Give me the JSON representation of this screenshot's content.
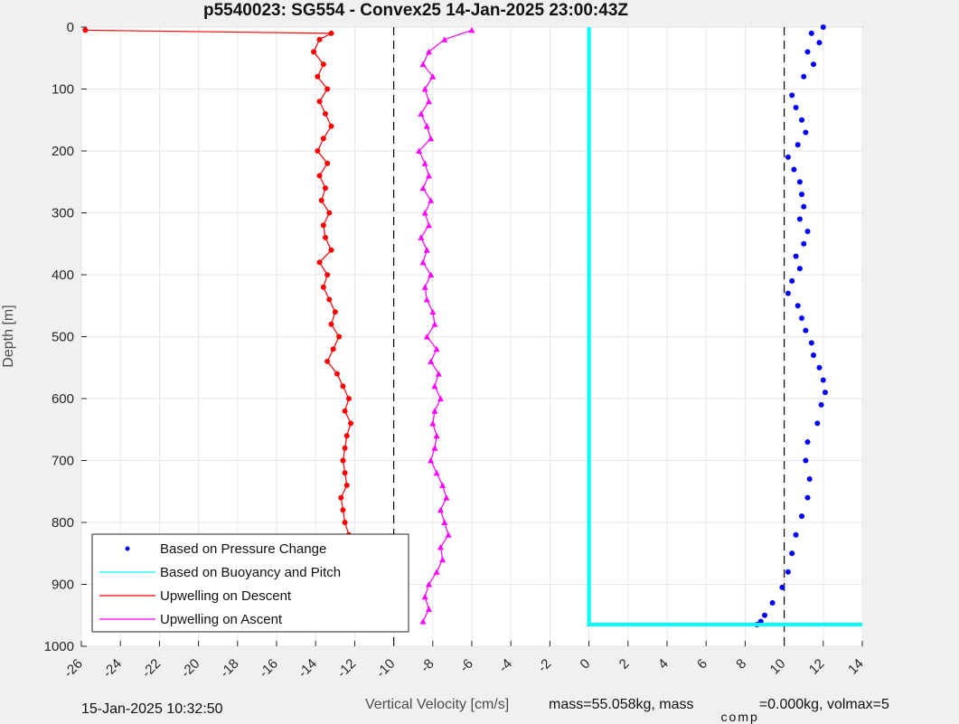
{
  "chart_data": {
    "type": "scatter",
    "title": "p5540023: SG554 - Convex25 14-Jan-2025 23:00:43Z",
    "xlabel": "Vertical Velocity [cm/s]",
    "ylabel": "Depth [m]",
    "xlim": [
      -26,
      14
    ],
    "ylim": [
      0,
      1000
    ],
    "y_reversed": true,
    "grid": true,
    "legend_position": "bottom-left",
    "x_ticks": [
      "-26",
      "-24",
      "-22",
      "-20",
      "-18",
      "-16",
      "-14",
      "-12",
      "-10",
      "-8",
      "-6",
      "-4",
      "-2",
      "0",
      "2",
      "4",
      "6",
      "8",
      "10",
      "12",
      "14"
    ],
    "y_ticks": [
      "0",
      "100",
      "200",
      "300",
      "400",
      "500",
      "600",
      "700",
      "800",
      "900",
      "1000"
    ],
    "reference_lines": [
      {
        "x": -10,
        "style": "dashed",
        "color": "#000000"
      },
      {
        "x": 10,
        "style": "dashed",
        "color": "#000000"
      }
    ],
    "series": [
      {
        "name": "Based on Pressure Change",
        "color": "#0000ff",
        "marker": "dot",
        "depth": [
          0,
          10,
          25,
          40,
          60,
          80,
          110,
          130,
          150,
          170,
          190,
          210,
          230,
          250,
          270,
          290,
          310,
          330,
          350,
          370,
          390,
          410,
          430,
          450,
          470,
          490,
          510,
          530,
          550,
          570,
          590,
          610,
          640,
          670,
          700,
          730,
          760,
          790,
          820,
          850,
          880,
          905,
          930,
          950,
          960,
          965
        ],
        "velocity": [
          12.0,
          11.4,
          11.8,
          11.2,
          11.5,
          11.0,
          10.4,
          10.6,
          10.9,
          11.1,
          10.7,
          10.2,
          10.5,
          10.8,
          10.9,
          11.0,
          10.8,
          11.2,
          11.0,
          10.6,
          10.8,
          10.4,
          10.2,
          10.7,
          10.9,
          11.1,
          11.4,
          11.5,
          11.8,
          12.0,
          12.1,
          11.9,
          11.7,
          11.2,
          11.1,
          11.3,
          11.2,
          10.9,
          10.6,
          10.4,
          10.2,
          9.9,
          9.4,
          9.0,
          8.8,
          8.6
        ]
      },
      {
        "name": "Based on Buoyancy and Pitch",
        "color": "#00ffff",
        "marker": "line",
        "depth": [
          0,
          100,
          200,
          300,
          400,
          500,
          600,
          700,
          800,
          900,
          965,
          965
        ],
        "velocity": [
          0,
          0,
          0,
          0,
          0,
          0,
          0,
          0,
          0,
          0,
          0,
          14
        ]
      },
      {
        "name": "Upwelling on Descent",
        "color": "#ff0000",
        "marker": "circle-line",
        "depth": [
          5,
          10,
          20,
          40,
          60,
          80,
          100,
          120,
          140,
          160,
          180,
          200,
          220,
          240,
          260,
          280,
          300,
          320,
          340,
          360,
          380,
          400,
          420,
          440,
          460,
          480,
          500,
          520,
          540,
          560,
          580,
          600,
          620,
          640,
          660,
          680,
          700,
          720,
          740,
          760,
          780,
          800,
          820,
          840,
          860,
          880,
          900,
          920,
          940,
          960
        ],
        "velocity": [
          -25.8,
          -13.2,
          -13.8,
          -14.1,
          -13.6,
          -13.9,
          -13.4,
          -13.8,
          -13.5,
          -13.2,
          -13.6,
          -13.9,
          -13.4,
          -13.8,
          -13.5,
          -13.7,
          -13.3,
          -13.6,
          -13.5,
          -13.2,
          -13.8,
          -13.4,
          -13.6,
          -13.3,
          -13.0,
          -13.2,
          -12.8,
          -13.1,
          -13.4,
          -12.9,
          -12.6,
          -12.3,
          -12.5,
          -12.2,
          -12.4,
          -12.5,
          -12.6,
          -12.5,
          -12.4,
          -12.7,
          -12.6,
          -12.5,
          -12.3,
          -12.5,
          -12.2,
          -12.3,
          -12.2,
          -12.0,
          -11.9,
          -11.8
        ]
      },
      {
        "name": "Upwelling on Ascent",
        "color": "#ff00ff",
        "marker": "triangle-line",
        "depth": [
          5,
          20,
          40,
          60,
          80,
          100,
          120,
          140,
          160,
          180,
          200,
          220,
          240,
          260,
          280,
          300,
          320,
          340,
          360,
          380,
          400,
          420,
          440,
          460,
          480,
          500,
          520,
          540,
          560,
          580,
          600,
          620,
          640,
          660,
          680,
          700,
          720,
          740,
          760,
          780,
          800,
          820,
          840,
          860,
          880,
          900,
          920,
          940,
          960
        ],
        "velocity": [
          -6.0,
          -7.4,
          -8.2,
          -8.5,
          -8.0,
          -8.4,
          -8.2,
          -8.6,
          -8.3,
          -8.1,
          -8.7,
          -8.4,
          -8.2,
          -8.5,
          -8.1,
          -8.4,
          -8.2,
          -8.6,
          -8.3,
          -8.5,
          -8.1,
          -8.4,
          -8.3,
          -8.0,
          -7.9,
          -8.3,
          -7.8,
          -8.1,
          -7.7,
          -7.9,
          -7.6,
          -7.9,
          -8.0,
          -7.8,
          -7.9,
          -8.1,
          -7.8,
          -7.5,
          -7.3,
          -7.6,
          -7.4,
          -7.2,
          -7.6,
          -7.5,
          -7.8,
          -8.2,
          -8.4,
          -8.2,
          -8.5
        ]
      }
    ],
    "footer": {
      "left": "15-Jan-2025 10:32:50",
      "right_prefix": "mass=55.058kg, mass",
      "subscript": "comp",
      "right_suffix": "=0.000kg, volmax=5"
    }
  }
}
